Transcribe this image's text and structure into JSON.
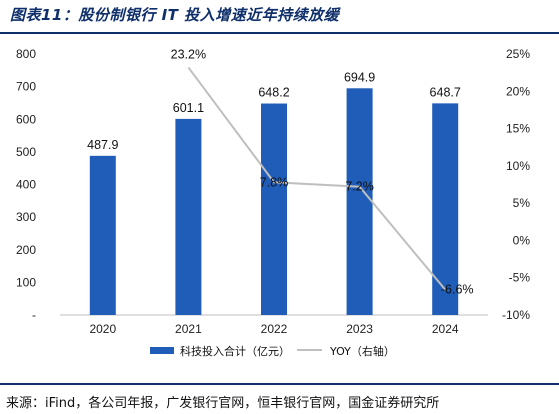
{
  "title": "图表11：股份制银行 IT 投入增速近年持续放缓",
  "source": "来源：iFind，各公司年报，广发银行官网，恒丰银行官网，国金证券研究所",
  "colors": {
    "bar": "#1f5db8",
    "line": "#bfbfbf",
    "title": "#0f2f6b"
  },
  "chart_data": {
    "type": "bar",
    "categories": [
      "2020",
      "2021",
      "2022",
      "2023",
      "2024"
    ],
    "series": [
      {
        "name": "科技投入合计（亿元）",
        "type": "bar",
        "axis": "left",
        "values": [
          487.9,
          601.1,
          648.2,
          694.9,
          648.7
        ],
        "labels": [
          "487.9",
          "601.1",
          "648.2",
          "694.9",
          "648.7"
        ]
      },
      {
        "name": "YOY（右轴）",
        "type": "line",
        "axis": "right",
        "values": [
          null,
          23.2,
          7.8,
          7.2,
          -6.6
        ],
        "labels": [
          "",
          "23.2%",
          "7.8%",
          "7.2%",
          "-6.6%"
        ]
      }
    ],
    "y_left": {
      "lim": [
        0,
        800
      ],
      "ticks": [
        "-",
        "100",
        "200",
        "300",
        "400",
        "500",
        "600",
        "700",
        "800"
      ]
    },
    "y_right": {
      "lim": [
        -10,
        25
      ],
      "ticks": [
        "-10%",
        "-5%",
        "0%",
        "5%",
        "10%",
        "15%",
        "20%",
        "25%"
      ]
    },
    "legend": {
      "position": "bottom"
    },
    "grid": false
  }
}
